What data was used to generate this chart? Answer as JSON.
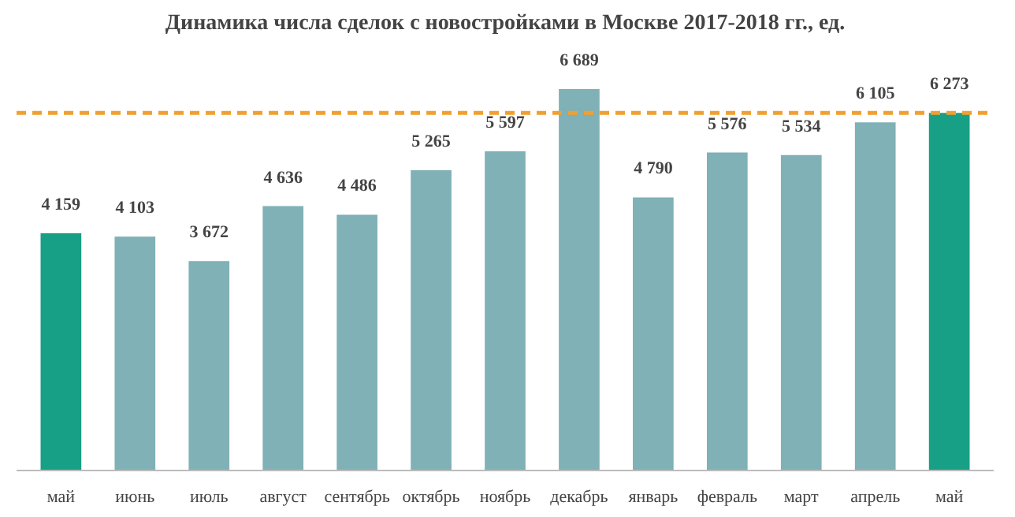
{
  "chart_data": {
    "type": "bar",
    "title": "Динамика числа сделок с новостройками в Москве 2017-2018 гг., ед.",
    "categories": [
      "май",
      "июнь",
      "июль",
      "август",
      "сентябрь",
      "октябрь",
      "ноябрь",
      "декабрь",
      "январь",
      "февраль",
      "март",
      "апрель",
      "май"
    ],
    "values": [
      4159,
      4103,
      3672,
      4636,
      4486,
      5265,
      5597,
      6689,
      4790,
      5576,
      5534,
      6105,
      6273
    ],
    "colors": [
      "#17a085",
      "#7fb1b6",
      "#7fb1b6",
      "#7fb1b6",
      "#7fb1b6",
      "#7fb1b6",
      "#7fb1b6",
      "#7fb1b6",
      "#7fb1b6",
      "#7fb1b6",
      "#7fb1b6",
      "#7fb1b6",
      "#17a085"
    ],
    "value_labels": [
      "4 159",
      "4 103",
      "3 672",
      "4 636",
      "4 486",
      "5 265",
      "5 597",
      "6 689",
      "4 790",
      "5 576",
      "5 534",
      "6 105",
      "6 273"
    ],
    "ref_lines": [
      {
        "axis": "y",
        "value": 6273,
        "color": "#f0a030",
        "line_style": "dashed"
      }
    ],
    "grid": false
  }
}
